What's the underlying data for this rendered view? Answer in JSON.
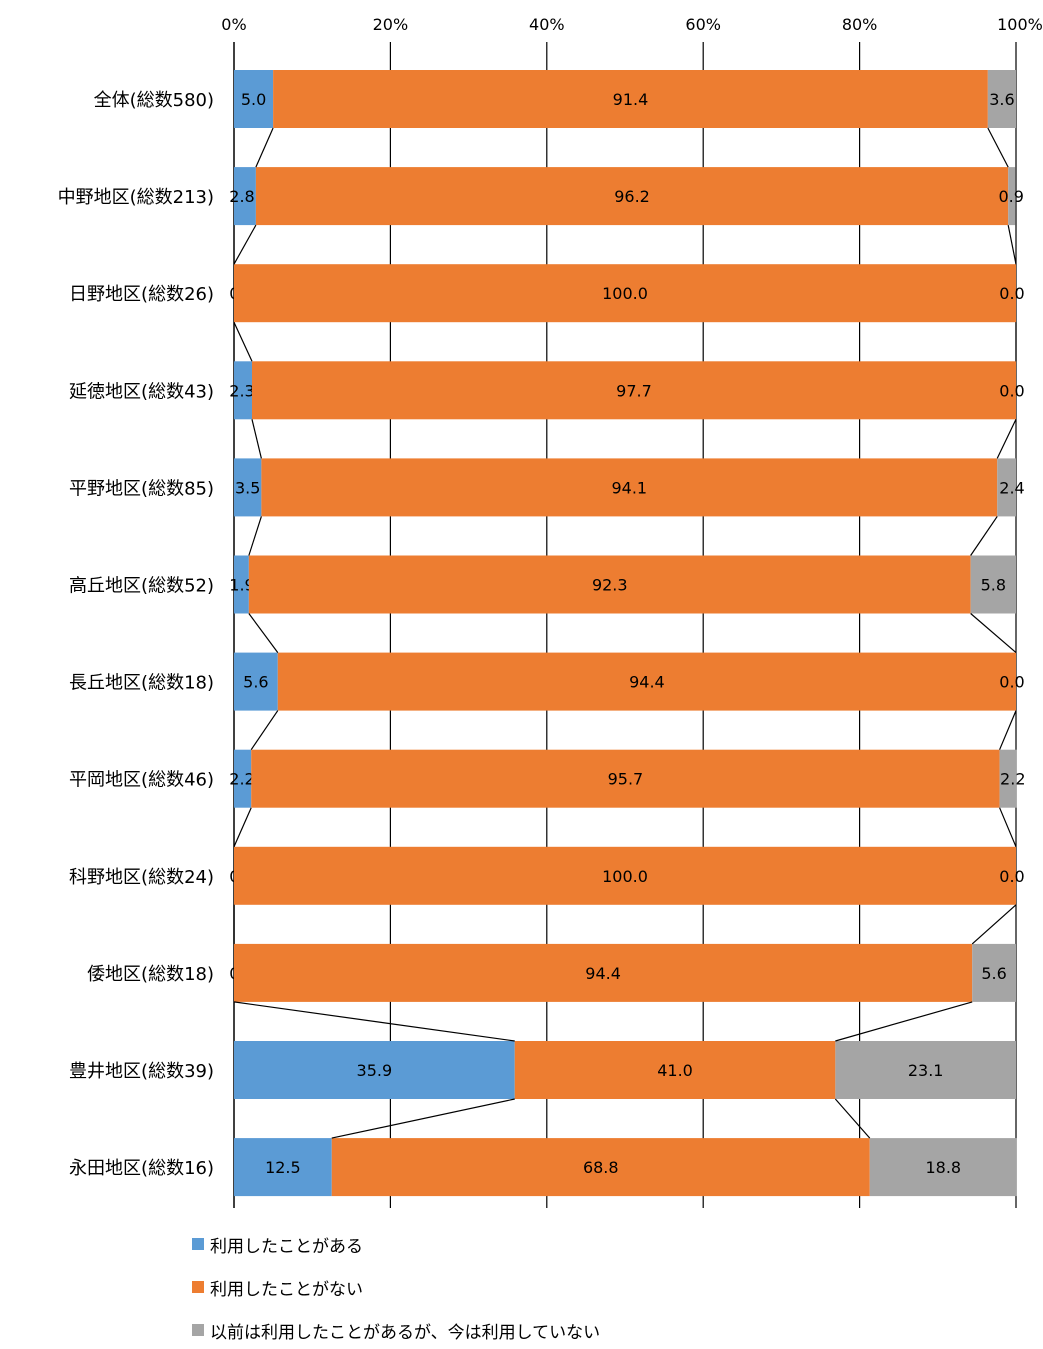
{
  "chart_data": {
    "type": "bar",
    "orientation": "horizontal",
    "stacked": "percent",
    "categories": [
      "全体(総数580)",
      "中野地区(総数213)",
      "日野地区(総数26)",
      "延徳地区(総数43)",
      "平野地区(総数85)",
      "高丘地区(総数52)",
      "長丘地区(総数18)",
      "平岡地区(総数46)",
      "科野地区(総数24)",
      "倭地区(総数18)",
      "豊井地区(総数39)",
      "永田地区(総数16)"
    ],
    "series": [
      {
        "name": "利用したことがある",
        "color": "#5b9bd5",
        "values": [
          5.0,
          2.8,
          0.0,
          2.3,
          3.5,
          1.9,
          5.6,
          2.2,
          0.0,
          0.0,
          35.9,
          12.5
        ]
      },
      {
        "name": "利用したことがない",
        "color": "#ed7d31",
        "values": [
          91.4,
          96.2,
          100.0,
          97.7,
          94.1,
          92.3,
          94.4,
          95.7,
          100.0,
          94.4,
          41.0,
          68.8
        ]
      },
      {
        "name": "以前は利用したことがあるが、今は利用していない",
        "color": "#a5a5a5",
        "values": [
          3.6,
          0.9,
          0.0,
          0.0,
          2.4,
          5.8,
          0.0,
          2.2,
          0.0,
          5.6,
          23.1,
          18.8
        ]
      }
    ],
    "data_labels": [
      [
        "5.0",
        "91.4",
        "3.6"
      ],
      [
        "2.8",
        "96.2",
        "0.9"
      ],
      [
        "0.0",
        "100.0",
        "0.0"
      ],
      [
        "2.3",
        "97.7",
        "0.0"
      ],
      [
        "3.5",
        "94.1",
        "2.4"
      ],
      [
        "1.9",
        "92.3",
        "5.8"
      ],
      [
        "5.6",
        "94.4",
        "0.0"
      ],
      [
        "2.2",
        "95.7",
        "2.2"
      ],
      [
        "0.0",
        "100.0",
        "0.0"
      ],
      [
        "0.0",
        "94.4",
        "5.6"
      ],
      [
        "35.9",
        "41.0",
        "23.1"
      ],
      [
        "12.5",
        "68.8",
        "18.8"
      ]
    ],
    "x_ticks": [
      "0%",
      "20%",
      "40%",
      "60%",
      "80%",
      "100%"
    ],
    "xlim": [
      0,
      100
    ],
    "grid": true,
    "series_lines": true,
    "legend_position": "bottom",
    "title": "",
    "xlabel": "",
    "ylabel": ""
  }
}
